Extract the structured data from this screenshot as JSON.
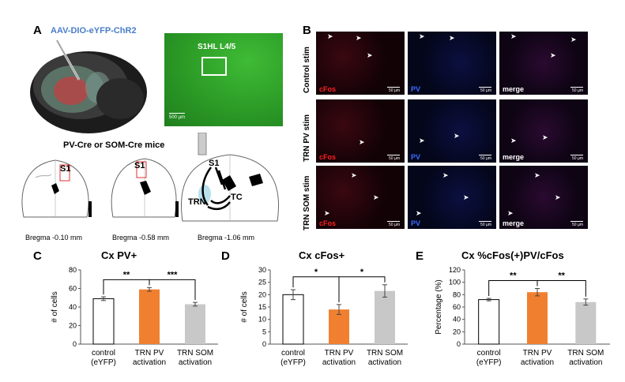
{
  "panel_a": {
    "letter": "A",
    "virus_label": "AAV-DIO-eYFP-ChR2",
    "region_label": "S1HL L4/5",
    "scale_label": "500 µm",
    "mice_label": "PV-Cre or SOM-Cre mice",
    "sections": [
      {
        "bregma": "Bregma -0.10 mm",
        "label": "S1"
      },
      {
        "bregma": "Bregma -0.58 mm",
        "label": "S1"
      },
      {
        "bregma": "Bregma -1.06 mm",
        "label": "S1"
      }
    ],
    "circuit_labels": {
      "s1": "S1",
      "trn": "TRN",
      "tc": "TC"
    }
  },
  "panel_b": {
    "letter": "B",
    "rows": [
      "Control stim",
      "TRN PV stim",
      "TRN SOM stim"
    ],
    "columns": [
      "cFos",
      "PV",
      "merge"
    ],
    "scale_label": "50 µm",
    "colors": {
      "cfos": "#ff2020",
      "pv": "#3a6cff",
      "merge": "#ffffff"
    }
  },
  "chart_data": [
    {
      "letter": "C",
      "type": "bar",
      "title": "Cx PV+",
      "ylabel": "# of cells",
      "ylim": [
        0,
        80
      ],
      "yticks": [
        0,
        20,
        40,
        60,
        80
      ],
      "categories": [
        "control\n(eYFP)",
        "TRN PV\nactivation",
        "TRN SOM\nactivation"
      ],
      "values": [
        49,
        59,
        43
      ],
      "errors": [
        2,
        2,
        2
      ],
      "colors": [
        "#ffffff",
        "#f08030",
        "#c8c8c8"
      ],
      "significance": [
        {
          "from": 0,
          "to": 1,
          "label": "**"
        },
        {
          "from": 1,
          "to": 2,
          "label": "***"
        }
      ]
    },
    {
      "letter": "D",
      "type": "bar",
      "title": "Cx cFos+",
      "ylabel": "# of cells",
      "ylim": [
        0,
        30
      ],
      "yticks": [
        0,
        5,
        10,
        15,
        20,
        25,
        30
      ],
      "categories": [
        "control\n(eYFP)",
        "TRN PV\nactivation",
        "TRN SOM\nactivation"
      ],
      "values": [
        20,
        14,
        21.5
      ],
      "errors": [
        2,
        2,
        2.5
      ],
      "colors": [
        "#ffffff",
        "#f08030",
        "#c8c8c8"
      ],
      "significance": [
        {
          "from": 0,
          "to": 1,
          "label": "*"
        },
        {
          "from": 1,
          "to": 2,
          "label": "*"
        }
      ]
    },
    {
      "letter": "E",
      "type": "bar",
      "title": "Cx %cFos(+)PV/cFos",
      "ylabel": "Percentage (%)",
      "ylim": [
        0,
        120
      ],
      "yticks": [
        0,
        20,
        40,
        60,
        80,
        100,
        120
      ],
      "categories": [
        "control\n(eYFP)",
        "TRN PV\nactivation",
        "TRN SOM\nactivation"
      ],
      "values": [
        72,
        84,
        68
      ],
      "errors": [
        2,
        6,
        5
      ],
      "colors": [
        "#ffffff",
        "#f08030",
        "#c8c8c8"
      ],
      "significance": [
        {
          "from": 0,
          "to": 1,
          "label": "**"
        },
        {
          "from": 1,
          "to": 2,
          "label": "**"
        }
      ]
    }
  ]
}
